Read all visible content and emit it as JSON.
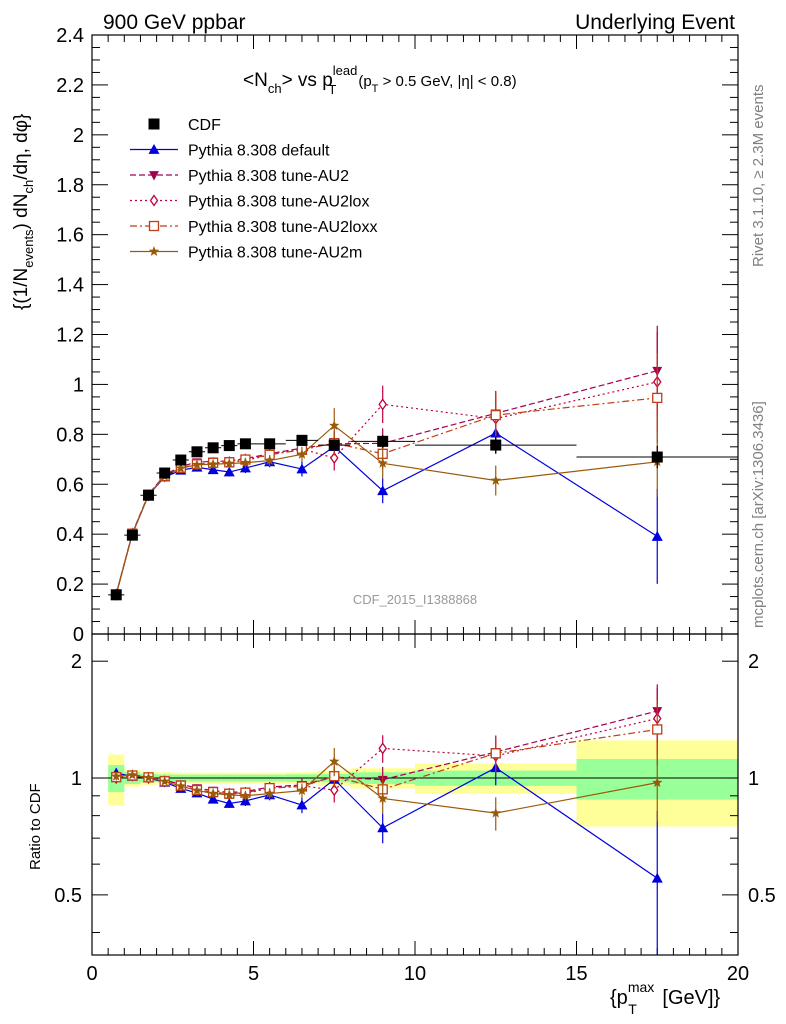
{
  "header": {
    "left": "900 GeV ppbar",
    "right": "Underlying Event"
  },
  "side_text": {
    "rivet": "Rivet 3.1.10, ≥ 2.3M events",
    "mcplots": "mcplots.cern.ch [arXiv:1306.3436]"
  },
  "chart_data": [
    {
      "type": "scatter",
      "title": "<N_ch> vs p_T^lead (p_T > 0.5 GeV, |η| < 0.8)",
      "title_parts": {
        "lhs": "<N",
        "lhs_sub": "ch",
        "mid": "> vs p",
        "mid_sub": "T",
        "mid_sup": "lead",
        "cut_a": "(p",
        "cut_sub": "T",
        "cut_b": " > 0.5 GeV, |η| < 0.8)"
      },
      "ylabel": "{(1/N_events) dN_ch/dη, dφ}",
      "ylabel_parts": {
        "a": "{(1/N",
        "a_sub": "events",
        "b": ") dN",
        "b_sub": "ch",
        "c": "/dη, dφ}"
      },
      "watermark": "CDF_2015_I1388868",
      "xlim": [
        0,
        20
      ],
      "ylim": [
        0,
        2.4
      ],
      "yticks": [
        0,
        0.2,
        0.4,
        0.6,
        0.8,
        1,
        1.2,
        1.4,
        1.6,
        1.8,
        2,
        2.2,
        2.4
      ],
      "ytick_labels": [
        "0",
        "0.2",
        "0.4",
        "0.6",
        "0.8",
        "1",
        "1.2",
        "1.4",
        "1.6",
        "1.8",
        "2",
        "2.2",
        "2.4"
      ],
      "x": [
        0.75,
        1.25,
        1.75,
        2.25,
        2.75,
        3.25,
        3.75,
        4.25,
        4.75,
        5.5,
        6.5,
        7.5,
        9.0,
        12.5,
        17.5
      ],
      "x_edges": [
        0.5,
        1.0,
        1.5,
        2.0,
        2.5,
        3.0,
        3.5,
        4.0,
        4.5,
        5.0,
        6.0,
        7.0,
        8.0,
        10.0,
        15.0,
        20.0
      ],
      "legend": {
        "placement": "top-left",
        "entries": [
          "CDF",
          "Pythia 8.308 default",
          "Pythia 8.308 tune-AU2",
          "Pythia 8.308 tune-AU2lox",
          "Pythia 8.308 tune-AU2loxx",
          "Pythia 8.308 tune-AU2m"
        ]
      },
      "series": [
        {
          "name": "CDF",
          "color": "#000000",
          "marker": "square",
          "line": "none",
          "values": [
            0.157,
            0.396,
            0.556,
            0.645,
            0.697,
            0.73,
            0.746,
            0.755,
            0.762,
            0.762,
            0.776,
            0.757,
            0.772,
            0.757,
            0.709
          ],
          "errors": [
            0.005,
            0.006,
            0.007,
            0.008,
            0.009,
            0.01,
            0.01,
            0.011,
            0.011,
            0.012,
            0.015,
            0.02,
            0.025,
            0.035,
            0.045
          ]
        },
        {
          "name": "Pythia 8.308 default",
          "color": "#0000dd",
          "marker": "triangle-up",
          "line": "solid",
          "values": [
            0.16,
            0.401,
            0.557,
            0.629,
            0.656,
            0.668,
            0.658,
            0.649,
            0.665,
            0.69,
            0.661,
            0.751,
            0.574,
            0.805,
            0.391
          ],
          "errors": [
            0.005,
            0.006,
            0.008,
            0.01,
            0.012,
            0.014,
            0.016,
            0.018,
            0.02,
            0.022,
            0.03,
            0.045,
            0.05,
            0.08,
            0.19
          ]
        },
        {
          "name": "Pythia 8.308 tune-AU2",
          "color": "#a00050",
          "marker": "triangle-down",
          "line": "dashed",
          "values": [
            0.159,
            0.405,
            0.56,
            0.637,
            0.672,
            0.688,
            0.692,
            0.693,
            0.703,
            0.722,
            0.745,
            0.762,
            0.764,
            0.884,
            1.055
          ],
          "errors": [
            0.004,
            0.006,
            0.008,
            0.01,
            0.012,
            0.013,
            0.015,
            0.017,
            0.019,
            0.022,
            0.03,
            0.05,
            0.06,
            0.09,
            0.18
          ]
        },
        {
          "name": "Pythia 8.308 tune-AU2lox",
          "color": "#c0003c",
          "marker": "diamond-open",
          "line": "dotted",
          "values": [
            0.158,
            0.402,
            0.556,
            0.632,
            0.665,
            0.68,
            0.685,
            0.688,
            0.695,
            0.718,
            0.741,
            0.705,
            0.92,
            0.863,
            1.01
          ],
          "errors": [
            0.004,
            0.006,
            0.008,
            0.01,
            0.012,
            0.013,
            0.015,
            0.017,
            0.019,
            0.022,
            0.03,
            0.05,
            0.075,
            0.09,
            0.2
          ]
        },
        {
          "name": "Pythia 8.308 tune-AU2loxx",
          "color": "#c03c14",
          "marker": "square-open",
          "line": "dashdot",
          "values": [
            0.158,
            0.402,
            0.558,
            0.633,
            0.666,
            0.68,
            0.686,
            0.688,
            0.699,
            0.718,
            0.738,
            0.765,
            0.722,
            0.877,
            0.946
          ],
          "errors": [
            0.004,
            0.006,
            0.008,
            0.01,
            0.012,
            0.013,
            0.015,
            0.017,
            0.019,
            0.022,
            0.03,
            0.05,
            0.06,
            0.09,
            0.18
          ]
        },
        {
          "name": "Pythia 8.308 tune-AU2m",
          "color": "#9b5a0a",
          "marker": "star",
          "line": "solid",
          "values": [
            0.159,
            0.403,
            0.557,
            0.632,
            0.664,
            0.678,
            0.68,
            0.683,
            0.686,
            0.695,
            0.72,
            0.835,
            0.684,
            0.615,
            0.69
          ],
          "errors": [
            0.004,
            0.006,
            0.008,
            0.01,
            0.012,
            0.013,
            0.015,
            0.017,
            0.019,
            0.022,
            0.03,
            0.07,
            0.06,
            0.06,
            0.14
          ]
        }
      ]
    },
    {
      "type": "scatter",
      "ylabel": "Ratio to CDF",
      "xlabel": "{p_T^max [GeV]}",
      "xlabel_parts": {
        "a": "{p",
        "sub": "T",
        "sup": "max",
        "b": " [GeV]}"
      },
      "xlim": [
        0,
        20
      ],
      "ylim": [
        0.35,
        2.35
      ],
      "log_y": true,
      "xticks": [
        0,
        5,
        10,
        15,
        20
      ],
      "xtick_labels": [
        "0",
        "5",
        "10",
        "15",
        "20"
      ],
      "yticks": [
        0.5,
        1,
        2
      ],
      "ytick_labels": [
        "0.5",
        "1",
        "2"
      ],
      "bands": {
        "x_edges": [
          0.5,
          1.0,
          1.5,
          2.0,
          2.5,
          3.0,
          3.5,
          4.0,
          4.5,
          5.0,
          6.0,
          7.0,
          8.0,
          10.0,
          15.0,
          20.0
        ],
        "inner": [
          0.08,
          0.035,
          0.025,
          0.022,
          0.02,
          0.02,
          0.02,
          0.02,
          0.02,
          0.02,
          0.022,
          0.025,
          0.035,
          0.045,
          0.12
        ],
        "outer": [
          0.15,
          0.05,
          0.04,
          0.035,
          0.032,
          0.032,
          0.032,
          0.032,
          0.032,
          0.032,
          0.035,
          0.045,
          0.06,
          0.09,
          0.25
        ],
        "inner_color": "#99ff99",
        "outer_color": "#ffff99"
      },
      "x": [
        0.75,
        1.25,
        1.75,
        2.25,
        2.75,
        3.25,
        3.75,
        4.25,
        4.75,
        5.5,
        6.5,
        7.5,
        9.0,
        12.5,
        17.5
      ],
      "series": [
        {
          "name": "Pythia 8.308 default",
          "values": [
            1.03,
            1.01,
            1.0,
            0.975,
            0.94,
            0.915,
            0.882,
            0.86,
            0.873,
            0.905,
            0.852,
            0.992,
            0.744,
            1.063,
            0.552
          ],
          "errors": [
            0.03,
            0.015,
            0.014,
            0.015,
            0.017,
            0.019,
            0.021,
            0.023,
            0.026,
            0.029,
            0.04,
            0.06,
            0.065,
            0.105,
            0.27
          ]
        },
        {
          "name": "Pythia 8.308 tune-AU2",
          "values": [
            1.01,
            1.02,
            1.005,
            0.987,
            0.964,
            0.942,
            0.928,
            0.918,
            0.923,
            0.948,
            0.96,
            1.006,
            0.99,
            1.167,
            1.488
          ],
          "errors": [
            0.025,
            0.015,
            0.014,
            0.015,
            0.017,
            0.018,
            0.02,
            0.022,
            0.025,
            0.029,
            0.04,
            0.066,
            0.078,
            0.12,
            0.255
          ]
        },
        {
          "name": "Pythia 8.308 tune-AU2lox",
          "values": [
            1.0,
            1.015,
            1.0,
            0.98,
            0.954,
            0.931,
            0.918,
            0.911,
            0.912,
            0.942,
            0.955,
            0.931,
            1.192,
            1.14,
            1.424
          ],
          "errors": [
            0.025,
            0.015,
            0.014,
            0.015,
            0.017,
            0.018,
            0.02,
            0.022,
            0.025,
            0.029,
            0.04,
            0.066,
            0.097,
            0.12,
            0.28
          ]
        },
        {
          "name": "Pythia 8.308 tune-AU2loxx",
          "values": [
            1.005,
            1.015,
            1.004,
            0.981,
            0.956,
            0.931,
            0.92,
            0.911,
            0.917,
            0.942,
            0.951,
            1.011,
            0.935,
            1.158,
            1.334
          ],
          "errors": [
            0.025,
            0.015,
            0.014,
            0.015,
            0.017,
            0.018,
            0.02,
            0.022,
            0.025,
            0.029,
            0.04,
            0.066,
            0.078,
            0.12,
            0.255
          ]
        },
        {
          "name": "Pythia 8.308 tune-AU2m",
          "values": [
            1.01,
            1.018,
            1.002,
            0.98,
            0.953,
            0.929,
            0.912,
            0.905,
            0.9,
            0.912,
            0.928,
            1.103,
            0.886,
            0.812,
            0.973
          ],
          "errors": [
            0.025,
            0.015,
            0.014,
            0.015,
            0.017,
            0.018,
            0.02,
            0.022,
            0.025,
            0.029,
            0.04,
            0.092,
            0.078,
            0.08,
            0.2
          ]
        }
      ]
    }
  ]
}
